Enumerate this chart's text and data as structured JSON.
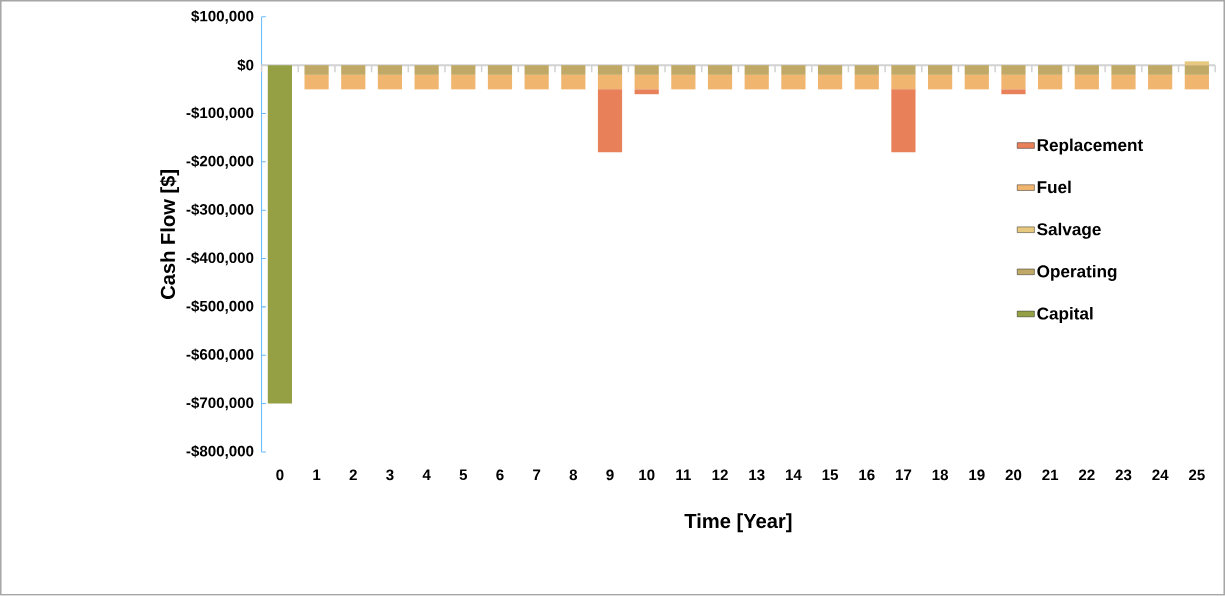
{
  "chart_data": {
    "type": "bar",
    "stacked": true,
    "xlabel": "Time [Year]",
    "ylabel": "Cash Flow [$]",
    "categories": [
      "0",
      "1",
      "2",
      "3",
      "4",
      "5",
      "6",
      "7",
      "8",
      "9",
      "10",
      "11",
      "12",
      "13",
      "14",
      "15",
      "16",
      "17",
      "18",
      "19",
      "20",
      "21",
      "22",
      "23",
      "24",
      "25"
    ],
    "series": [
      {
        "name": "Capital",
        "color": "#94a043",
        "values": [
          -700000,
          null,
          null,
          null,
          null,
          null,
          null,
          null,
          null,
          null,
          null,
          null,
          null,
          null,
          null,
          null,
          null,
          null,
          null,
          null,
          null,
          null,
          null,
          null,
          null,
          null
        ]
      },
      {
        "name": "Operating",
        "color": "#c0a966",
        "values": [
          null,
          -20000,
          -20000,
          -20000,
          -20000,
          -20000,
          -20000,
          -20000,
          -20000,
          -20000,
          -20000,
          -20000,
          -20000,
          -20000,
          -20000,
          -20000,
          -20000,
          -20000,
          -20000,
          -20000,
          -20000,
          -20000,
          -20000,
          -20000,
          -20000,
          -20000
        ]
      },
      {
        "name": "Salvage",
        "color": "#e6c97e",
        "values": [
          null,
          null,
          null,
          null,
          null,
          null,
          null,
          null,
          null,
          null,
          null,
          null,
          null,
          null,
          null,
          null,
          null,
          null,
          null,
          null,
          null,
          null,
          null,
          null,
          null,
          8000
        ]
      },
      {
        "name": "Fuel",
        "color": "#f0b56f",
        "values": [
          null,
          -30000,
          -30000,
          -30000,
          -30000,
          -30000,
          -30000,
          -30000,
          -30000,
          -30000,
          -30000,
          -30000,
          -30000,
          -30000,
          -30000,
          -30000,
          -30000,
          -30000,
          -30000,
          -30000,
          -30000,
          -30000,
          -30000,
          -30000,
          -30000,
          -30000
        ]
      },
      {
        "name": "Replacement",
        "color": "#e8805a",
        "values": [
          null,
          null,
          null,
          null,
          null,
          null,
          null,
          null,
          null,
          -130000,
          -10000,
          null,
          null,
          null,
          null,
          null,
          null,
          -130000,
          null,
          null,
          -10000,
          null,
          null,
          null,
          null,
          null
        ]
      }
    ],
    "ylim": [
      -800000,
      100000
    ],
    "yticks": [
      {
        "value": 100000,
        "label": "$100,000"
      },
      {
        "value": 0,
        "label": "$0"
      },
      {
        "value": -100000,
        "label": "-$100,000"
      },
      {
        "value": -200000,
        "label": "-$200,000"
      },
      {
        "value": -300000,
        "label": "-$300,000"
      },
      {
        "value": -400000,
        "label": "-$400,000"
      },
      {
        "value": -500000,
        "label": "-$500,000"
      },
      {
        "value": -600000,
        "label": "-$600,000"
      },
      {
        "value": -700000,
        "label": "-$700,000"
      },
      {
        "value": -800000,
        "label": "-$800,000"
      }
    ],
    "legend": "right"
  }
}
